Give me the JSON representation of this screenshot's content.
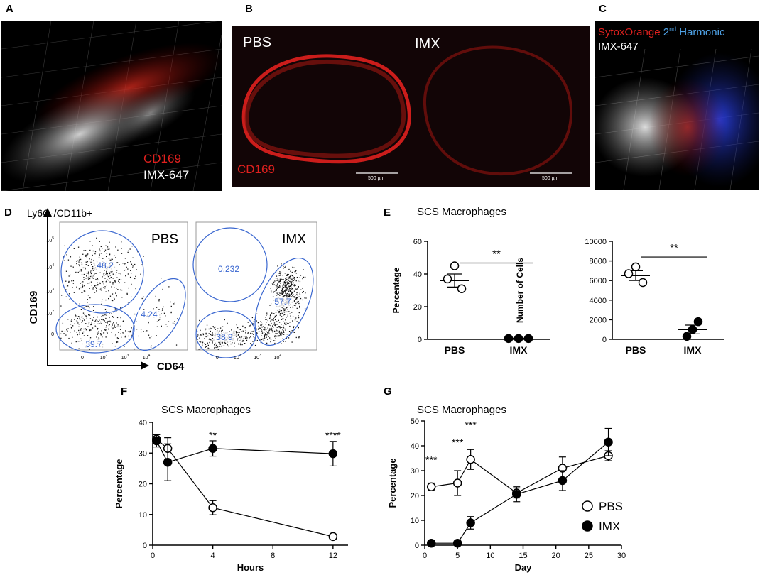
{
  "panels": {
    "A": "A",
    "B": "B",
    "C": "C",
    "D": "D",
    "E": "E",
    "F": "F",
    "G": "G"
  },
  "colors": {
    "red": "#e0201e",
    "blue": "#4fa3e8",
    "gate": "#3a67d0",
    "white": "#ffffff",
    "black": "#000000"
  },
  "micrographs": {
    "a": {
      "label_red": "CD169",
      "label_white": "IMX-647"
    },
    "b": {
      "left_title": "PBS",
      "right_title": "IMX",
      "label_red": "CD169",
      "scalebar_left": "500 µm",
      "scalebar_right": "500 µm"
    },
    "c": {
      "label_red": "SytoxOrange",
      "label_blue_pre": "2",
      "label_blue_sup": "nd",
      "label_blue_post": " Harmonic",
      "label_white": "IMX-647"
    }
  },
  "flow": {
    "title": "Ly6G-/CD11b+",
    "y_axis_label": "CD169",
    "x_axis_label": "CD64",
    "x_ticks": [
      "0",
      "10",
      "10",
      "10"
    ],
    "x_tick_sup": [
      "",
      "2",
      "3",
      "4"
    ],
    "y_ticks": [
      "0",
      "10",
      "10",
      "10",
      "10"
    ],
    "y_tick_sup": [
      "",
      "2",
      "3",
      "4",
      "5"
    ],
    "plots": [
      {
        "name": "PBS",
        "gates": [
          "48.2",
          "4.24",
          "39.7"
        ]
      },
      {
        "name": "IMX",
        "gates": [
          "0.232",
          "57.7",
          "38.9"
        ]
      }
    ]
  },
  "chart_data": [
    {
      "type": "scatter",
      "title": "SCS Macrophages",
      "xlabel": "",
      "ylabel": "Percentage",
      "categories": [
        "PBS",
        "IMX"
      ],
      "ylim": [
        0,
        60
      ],
      "yticks": [
        0,
        20,
        40,
        60
      ],
      "points": {
        "PBS": [
          45,
          37,
          31
        ],
        "IMX": [
          0.5,
          0.5,
          0.5
        ]
      },
      "mean": {
        "PBS": 36,
        "IMX": 0.5
      },
      "sem": {
        "PBS": 4,
        "IMX": 0.2
      },
      "significance": "**"
    },
    {
      "type": "scatter",
      "title": "",
      "xlabel": "",
      "ylabel": "Number of Cells",
      "categories": [
        "PBS",
        "IMX"
      ],
      "ylim": [
        0,
        10000
      ],
      "yticks": [
        0,
        2000,
        4000,
        6000,
        8000,
        10000
      ],
      "points": {
        "PBS": [
          7400,
          6700,
          5800
        ],
        "IMX": [
          1800,
          1000,
          300
        ]
      },
      "mean": {
        "PBS": 6500,
        "IMX": 1000
      },
      "sem": {
        "PBS": 500,
        "IMX": 450
      },
      "significance": "**"
    },
    {
      "type": "line",
      "title": "SCS Macrophages",
      "xlabel": "Hours",
      "ylabel": "Percentage",
      "xlim": [
        0,
        13
      ],
      "xticks": [
        0,
        4,
        8,
        12
      ],
      "ylim": [
        0,
        40
      ],
      "yticks": [
        0,
        10,
        20,
        30,
        40
      ],
      "series": [
        {
          "name": "PBS",
          "x": [
            0.25,
            1,
            4,
            12
          ],
          "y": [
            34.5,
            31.5,
            12.2,
            2.8
          ],
          "err": [
            1.5,
            3.5,
            2.3,
            0.5
          ]
        },
        {
          "name": "IMX",
          "x": [
            0.25,
            1,
            4,
            12
          ],
          "y": [
            34,
            27,
            31.5,
            29.8
          ],
          "err": [
            2,
            6,
            2.5,
            4
          ]
        }
      ],
      "annotations": [
        {
          "x": 4,
          "text": "**"
        },
        {
          "x": 12,
          "text": "****"
        }
      ]
    },
    {
      "type": "line",
      "title": "SCS Macrophages",
      "xlabel": "Day",
      "ylabel": "Percentage",
      "xlim": [
        0,
        30
      ],
      "xticks": [
        0,
        5,
        10,
        15,
        20,
        25,
        30
      ],
      "ylim": [
        0,
        50
      ],
      "yticks": [
        0,
        10,
        20,
        30,
        40,
        50
      ],
      "series": [
        {
          "name": "PBS",
          "x": [
            1,
            5,
            7,
            14,
            21,
            28
          ],
          "y": [
            23.5,
            25,
            34.5,
            21,
            31,
            36
          ],
          "err": [
            1.5,
            5,
            4,
            2,
            4.5,
            2
          ]
        },
        {
          "name": "IMX",
          "x": [
            1,
            5,
            7,
            14,
            21,
            28
          ],
          "y": [
            0.8,
            0.8,
            9,
            20.5,
            26,
            41.5
          ],
          "err": [
            0.3,
            0.3,
            2.5,
            3,
            4,
            5.5
          ]
        }
      ],
      "annotations": [
        {
          "x": 1,
          "y": 33,
          "text": "***"
        },
        {
          "x": 5,
          "y": 40,
          "text": "***"
        },
        {
          "x": 7,
          "y": 47,
          "text": "***"
        }
      ],
      "legend": {
        "position": "bottom-right",
        "entries": [
          "PBS",
          "IMX"
        ]
      }
    }
  ]
}
